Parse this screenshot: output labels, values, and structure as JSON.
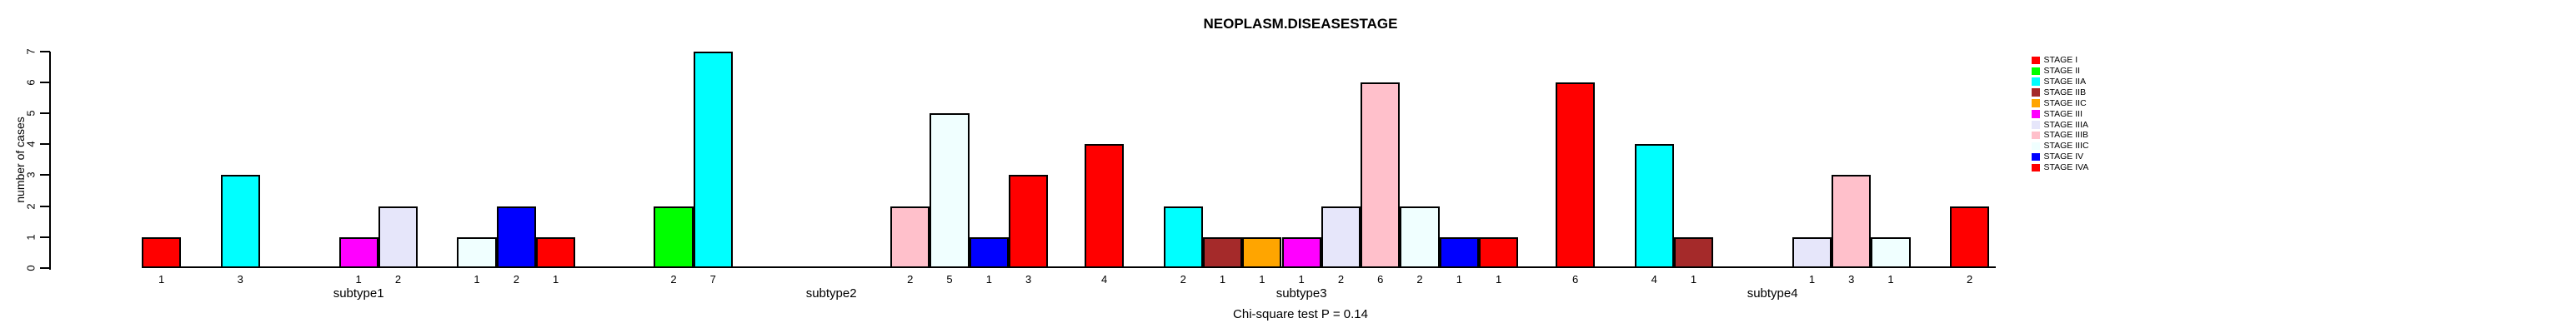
{
  "title": "NEOPLASM.DISEASESTAGE",
  "footer": "Chi-square test P = 0.14",
  "y_axis": {
    "label": "number of cases",
    "ticks": [
      0,
      1,
      2,
      3,
      4,
      5,
      6,
      7
    ]
  },
  "legend": {
    "items": [
      {
        "label": "STAGE I",
        "color": "#FF0000"
      },
      {
        "label": "STAGE II",
        "color": "#00FF00"
      },
      {
        "label": "STAGE IIA",
        "color": "#00FFFF"
      },
      {
        "label": "STAGE IIB",
        "color": "#A52A2A"
      },
      {
        "label": "STAGE IIC",
        "color": "#FFA500"
      },
      {
        "label": "STAGE III",
        "color": "#FF00FF"
      },
      {
        "label": "STAGE IIIA",
        "color": "#E6E6FA"
      },
      {
        "label": "STAGE IIIB",
        "color": "#FFC0CB"
      },
      {
        "label": "STAGE IIIC",
        "color": "#F0FFFF"
      },
      {
        "label": "STAGE IV",
        "color": "#0000FF"
      },
      {
        "label": "STAGE IVA",
        "color": "#FF0000"
      }
    ]
  },
  "chart_data": {
    "type": "bar",
    "title": "NEOPLASM.DISEASESTAGE",
    "xlabel": "",
    "ylabel": "number of cases",
    "ylim": [
      0,
      7
    ],
    "grid": false,
    "legend_position": "right",
    "annotation": "Chi-square test P = 0.14",
    "value_labels": "counts printed below axis under each nonzero bar",
    "categories": [
      "subtype1",
      "subtype2",
      "subtype3",
      "subtype4"
    ],
    "series": [
      {
        "name": "STAGE I",
        "color": "#FF0000",
        "values": [
          1,
          0,
          4,
          6
        ]
      },
      {
        "name": "STAGE II",
        "color": "#00FF00",
        "values": [
          0,
          2,
          0,
          0
        ]
      },
      {
        "name": "STAGE IIA",
        "color": "#00FFFF",
        "values": [
          3,
          7,
          2,
          4
        ]
      },
      {
        "name": "STAGE IIB",
        "color": "#A52A2A",
        "values": [
          0,
          0,
          1,
          1
        ]
      },
      {
        "name": "STAGE IIC",
        "color": "#FFA500",
        "values": [
          0,
          0,
          1,
          0
        ]
      },
      {
        "name": "STAGE III",
        "color": "#FF00FF",
        "values": [
          1,
          0,
          1,
          0
        ]
      },
      {
        "name": "STAGE IIIA",
        "color": "#E6E6FA",
        "values": [
          2,
          0,
          2,
          1
        ]
      },
      {
        "name": "STAGE IIIB",
        "color": "#FFC0CB",
        "values": [
          0,
          2,
          6,
          3
        ]
      },
      {
        "name": "STAGE IIIC",
        "color": "#F0FFFF",
        "values": [
          1,
          5,
          2,
          1
        ]
      },
      {
        "name": "STAGE IV",
        "color": "#0000FF",
        "values": [
          2,
          1,
          1,
          0
        ]
      },
      {
        "name": "STAGE IVA",
        "color": "#FF0000",
        "values": [
          1,
          3,
          1,
          2
        ]
      }
    ]
  }
}
